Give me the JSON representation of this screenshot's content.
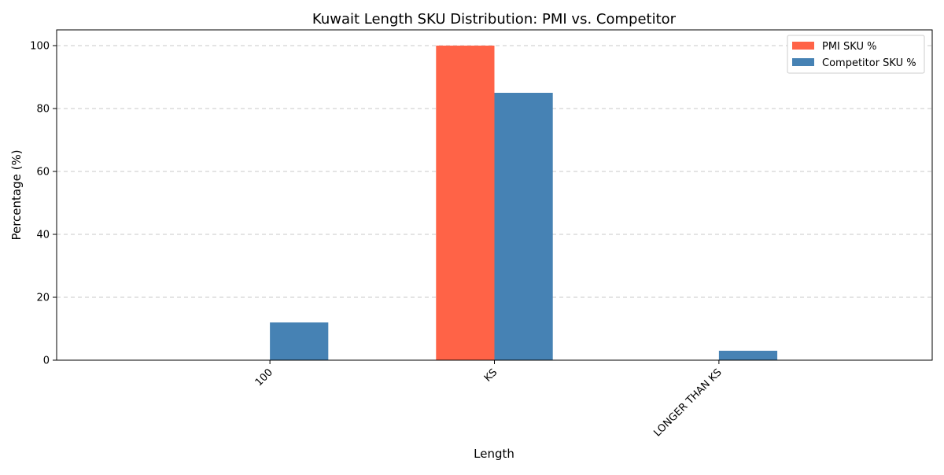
{
  "chart_data": {
    "type": "bar",
    "title": "Kuwait Length SKU Distribution: PMI vs. Competitor",
    "xlabel": "Length",
    "ylabel": "Percentage (%)",
    "categories": [
      "100",
      "KS",
      "LONGER THAN KS"
    ],
    "series": [
      {
        "name": "PMI SKU %",
        "values": [
          0,
          100,
          0
        ],
        "color": "#ff6347"
      },
      {
        "name": "Competitor SKU %",
        "values": [
          12,
          85,
          3
        ],
        "color": "#4682b4"
      }
    ],
    "ylim": [
      0,
      105
    ],
    "yticks": [
      0,
      20,
      40,
      60,
      80,
      100
    ],
    "grid": "y-dashed",
    "legend_position": "top-right",
    "xtick_rotation": "45 degrees"
  }
}
